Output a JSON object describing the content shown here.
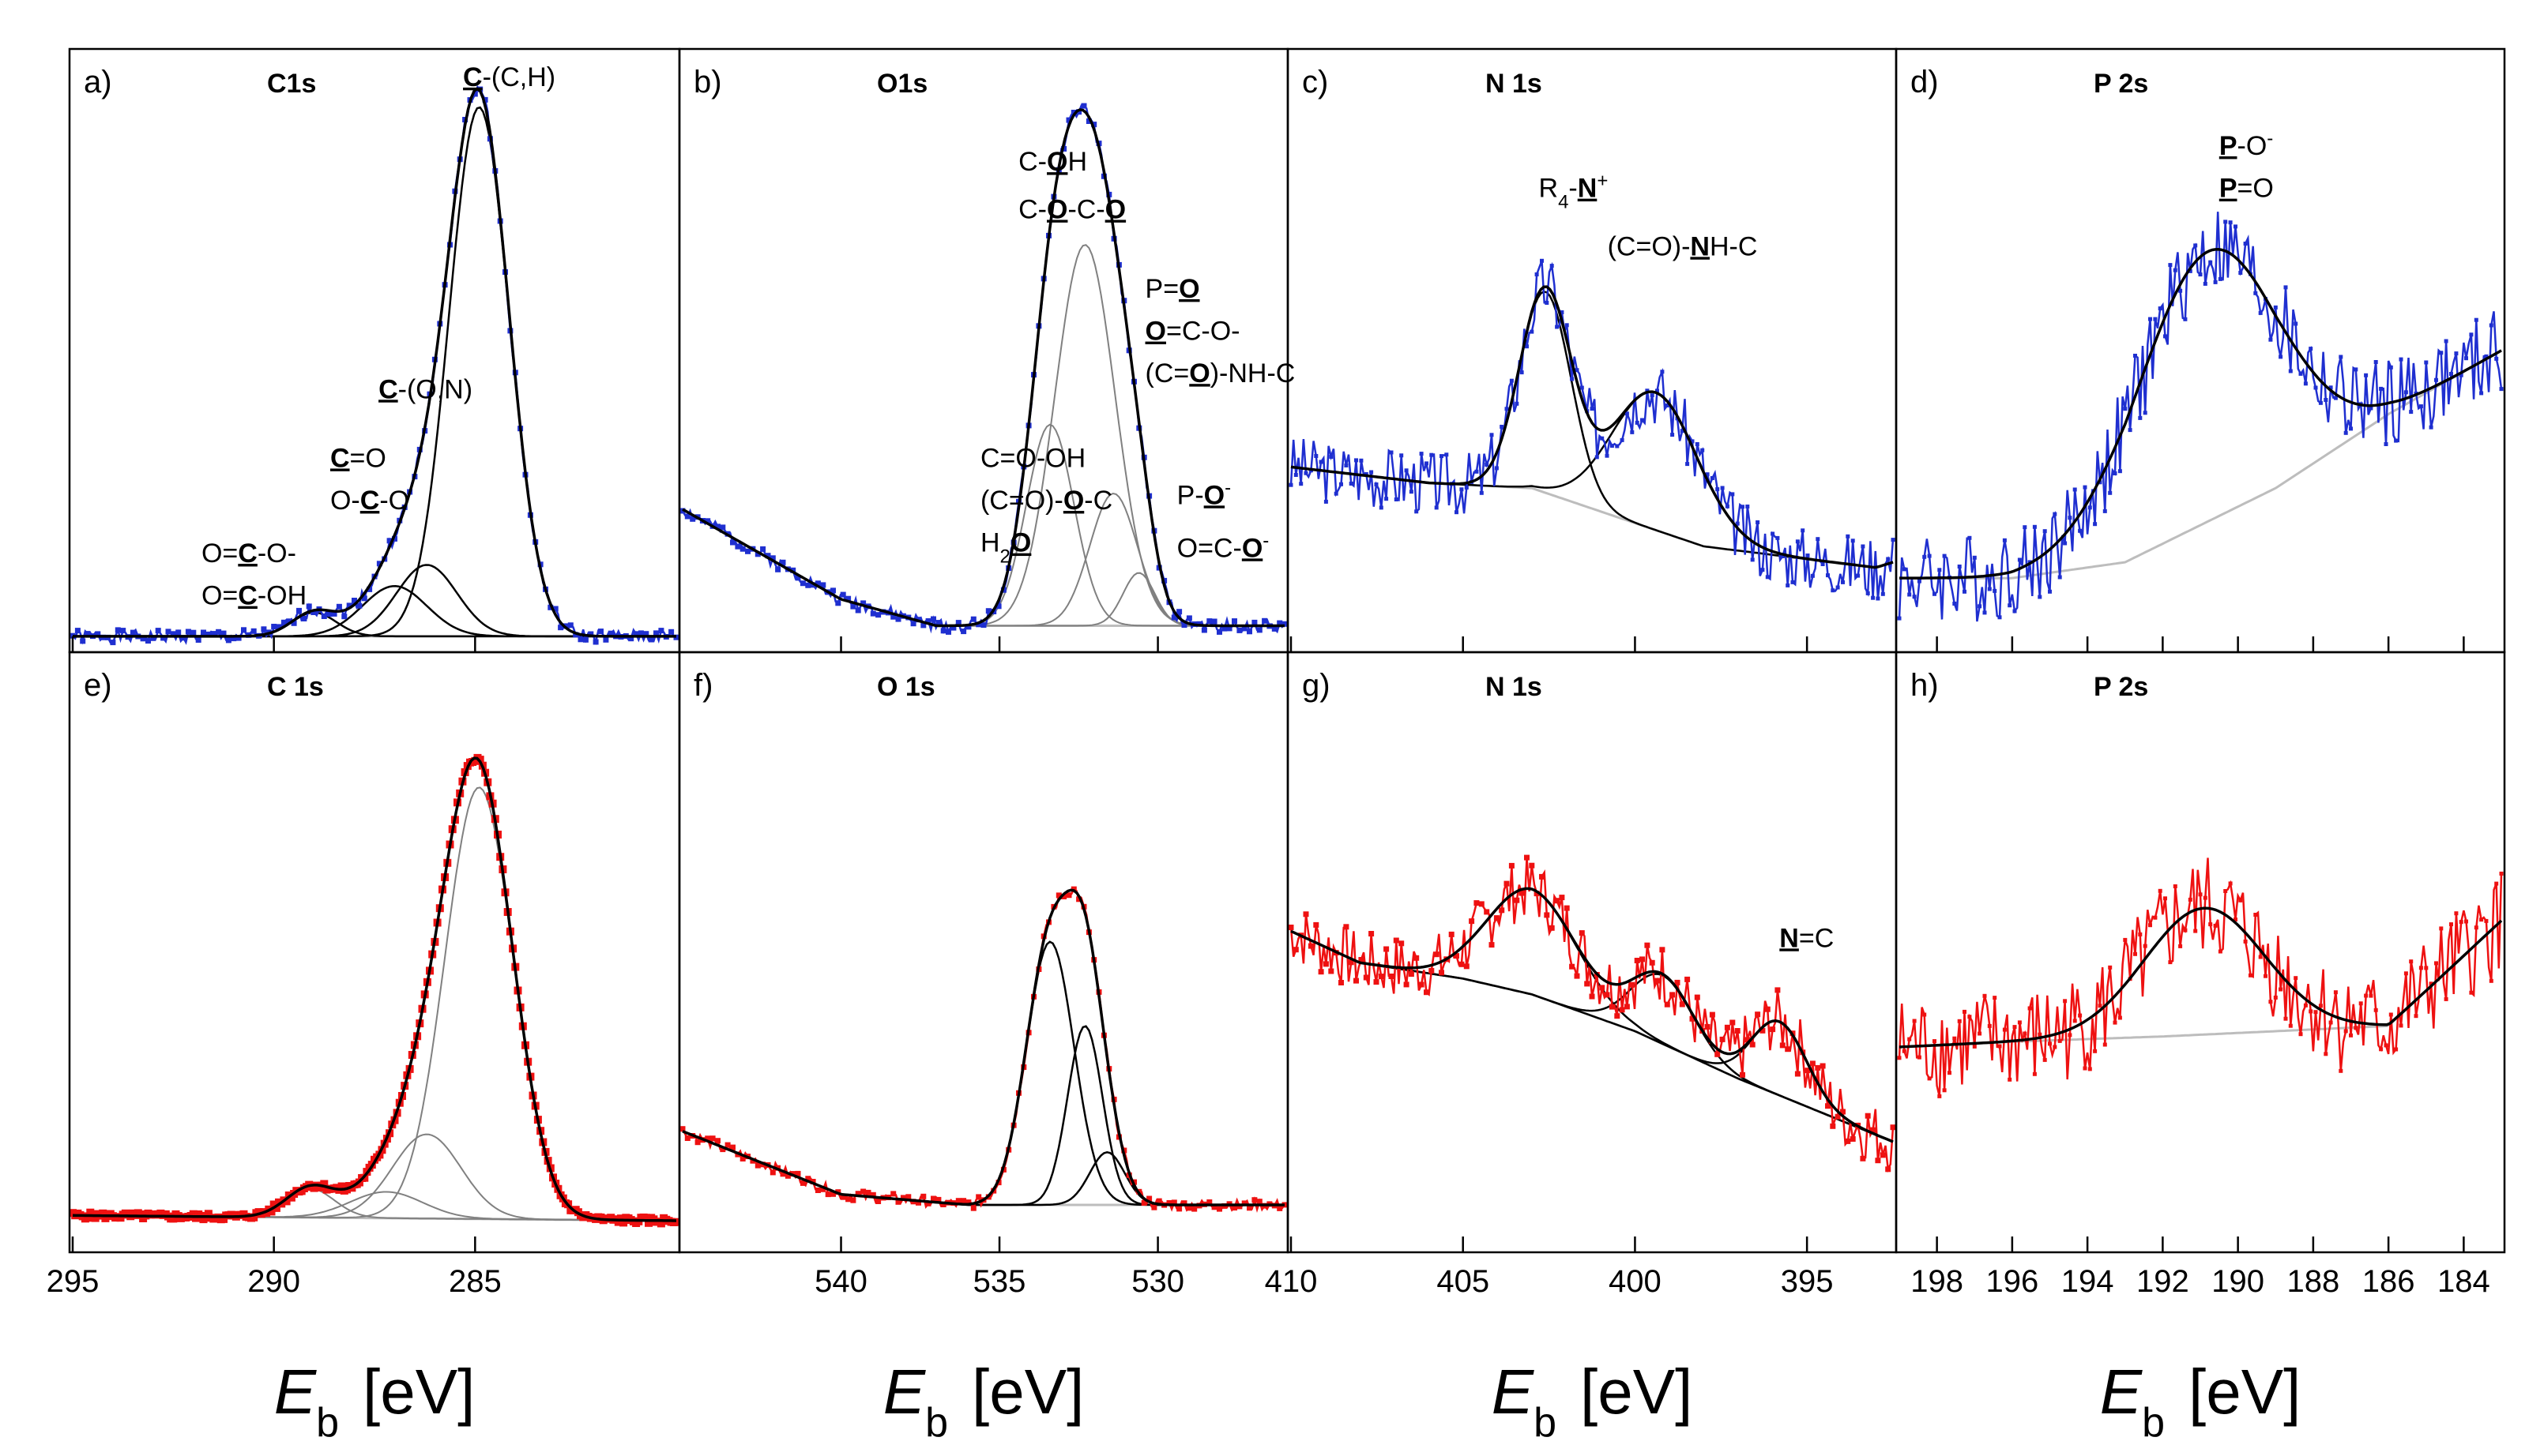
{
  "colors": {
    "upper": "#1f2fd0",
    "lower": "#ee1111",
    "component": "#000000",
    "component_light": "#808080",
    "background": "#bdbdbd"
  },
  "chart_data": [
    {
      "panel": "a)",
      "title": "C1s",
      "type": "line",
      "row": "upper",
      "column": 1,
      "xlim": [
        295,
        280
      ],
      "xlabel_symbol": "E",
      "xlabel_sub": "b",
      "xlabel_unit": "[eV]",
      "ticks": [
        {
          "v": 295,
          "label": "295"
        },
        {
          "v": 290,
          "label": "290"
        },
        {
          "v": 285,
          "label": "285"
        }
      ],
      "background": [
        [
          295,
          0.02
        ],
        [
          280,
          0.02
        ]
      ],
      "peaks": [
        {
          "center": 284.9,
          "height": 1.0,
          "width": 0.75
        },
        {
          "center": 286.2,
          "height": 0.135,
          "width": 0.75
        },
        {
          "center": 287.0,
          "height": 0.095,
          "width": 0.8
        },
        {
          "center": 289.0,
          "height": 0.045,
          "width": 0.55
        }
      ],
      "noise": 0.012,
      "seed": 1,
      "marker": "square",
      "annotations": [
        {
          "parts": [
            {
              "t": "C",
              "u": true
            },
            {
              "t": "-(C,H)"
            }
          ],
          "x": 285.3,
          "y": 1.06
        },
        {
          "parts": [
            {
              "t": "C",
              "u": true
            },
            {
              "t": "-(O,N)"
            }
          ],
          "x": 287.4,
          "y": 0.47
        },
        {
          "parts": [
            {
              "t": "C",
              "u": true
            },
            {
              "t": "=O"
            }
          ],
          "x": 288.6,
          "y": 0.34
        },
        {
          "parts": [
            {
              "t": "O-"
            },
            {
              "t": "C",
              "u": true
            },
            {
              "t": "-O"
            }
          ],
          "x": 288.6,
          "y": 0.26
        },
        {
          "parts": [
            {
              "t": "O="
            },
            {
              "t": "C",
              "u": true
            },
            {
              "t": "-O-"
            }
          ],
          "x": 291.8,
          "y": 0.16
        },
        {
          "parts": [
            {
              "t": "O="
            },
            {
              "t": "C",
              "u": true
            },
            {
              "t": "-OH"
            }
          ],
          "x": 291.8,
          "y": 0.08
        }
      ]
    },
    {
      "panel": "b)",
      "title": "O1s",
      "type": "line",
      "row": "upper",
      "column": 2,
      "xlim": [
        545,
        526
      ],
      "xlabel_symbol": "E",
      "xlabel_sub": "b",
      "xlabel_unit": "[eV]",
      "ticks": [
        {
          "v": 540,
          "label": "540"
        },
        {
          "v": 535,
          "label": "535"
        },
        {
          "v": 530,
          "label": "530"
        }
      ],
      "background": [
        [
          545,
          0.26
        ],
        [
          540,
          0.09
        ],
        [
          537,
          0.04
        ],
        [
          526,
          0.04
        ]
      ],
      "peaks": [
        {
          "center": 532.3,
          "height": 0.72,
          "width": 0.95
        },
        {
          "center": 533.4,
          "height": 0.38,
          "width": 0.75
        },
        {
          "center": 531.4,
          "height": 0.25,
          "width": 0.75
        },
        {
          "center": 530.6,
          "height": 0.1,
          "width": 0.5
        }
      ],
      "noise": 0.012,
      "seed": 2,
      "marker": "square",
      "annotations": [
        {
          "parts": [
            {
              "t": "C-"
            },
            {
              "t": "O",
              "u": true
            },
            {
              "t": "H"
            }
          ],
          "x": 534.4,
          "y": 0.9
        },
        {
          "parts": [
            {
              "t": "C-"
            },
            {
              "t": "O",
              "u": true
            },
            {
              "t": "-C-"
            },
            {
              "t": "O",
              "u": true
            }
          ],
          "x": 534.4,
          "y": 0.81
        },
        {
          "parts": [
            {
              "t": "P="
            },
            {
              "t": "O",
              "u": true
            }
          ],
          "x": 530.4,
          "y": 0.66
        },
        {
          "parts": [
            {
              "t": "O",
              "u": true
            },
            {
              "t": "=C-O-"
            }
          ],
          "x": 530.4,
          "y": 0.58
        },
        {
          "parts": [
            {
              "t": "(C="
            },
            {
              "t": "O",
              "u": true
            },
            {
              "t": ")-NH-C"
            }
          ],
          "x": 530.4,
          "y": 0.5
        },
        {
          "parts": [
            {
              "t": "C=O-OH"
            }
          ],
          "x": 535.6,
          "y": 0.34
        },
        {
          "parts": [
            {
              "t": "(C=O)-"
            },
            {
              "t": "O",
              "u": true
            },
            {
              "t": "-C"
            }
          ],
          "x": 535.6,
          "y": 0.26
        },
        {
          "parts": [
            {
              "t": "H"
            },
            {
              "t": "2",
              "sub": true
            },
            {
              "t": "O",
              "u": true
            }
          ],
          "x": 535.6,
          "y": 0.18
        },
        {
          "parts": [
            {
              "t": "P-"
            },
            {
              "t": "O",
              "u": true
            },
            {
              "t": "-",
              "sup": true
            }
          ],
          "x": 529.4,
          "y": 0.27
        },
        {
          "parts": [
            {
              "t": "O=C-"
            },
            {
              "t": "O",
              "u": true
            },
            {
              "t": "-",
              "sup": true
            }
          ],
          "x": 529.4,
          "y": 0.17
        }
      ]
    },
    {
      "panel": "c)",
      "title": "N 1s",
      "type": "line",
      "row": "upper",
      "column": 3,
      "xlim": [
        410,
        392.5
      ],
      "ticks": [
        {
          "v": 410,
          "label": "410"
        },
        {
          "v": 405,
          "label": "405"
        },
        {
          "v": 400,
          "label": "400"
        },
        {
          "v": 395,
          "label": "395"
        }
      ],
      "background": [
        [
          410,
          0.34
        ],
        [
          406,
          0.31
        ],
        [
          403,
          0.3
        ],
        [
          398,
          0.19
        ],
        [
          393,
          0.15
        ],
        [
          392.5,
          0.16
        ]
      ],
      "peaks": [
        {
          "center": 402.6,
          "height": 0.38,
          "width": 0.75
        },
        {
          "center": 399.4,
          "height": 0.26,
          "width": 1.25
        }
      ],
      "noise": 0.06,
      "seed": 3,
      "marker": "dot",
      "annotations": [
        {
          "parts": [
            {
              "t": "R"
            },
            {
              "t": "4",
              "sub": true
            },
            {
              "t": "-"
            },
            {
              "t": "N",
              "u": true
            },
            {
              "t": "+",
              "sup": true
            }
          ],
          "x": 402.8,
          "y": 0.85
        },
        {
          "parts": [
            {
              "t": "(C=O)-"
            },
            {
              "t": "N",
              "u": true
            },
            {
              "t": "H-C"
            }
          ],
          "x": 400.8,
          "y": 0.74
        }
      ]
    },
    {
      "panel": "d)",
      "title": "P 2s",
      "type": "line",
      "row": "upper",
      "column": 4,
      "xlim": [
        199,
        183
      ],
      "ticks": [
        {
          "v": 198,
          "label": "198"
        },
        {
          "v": 196,
          "label": "196"
        },
        {
          "v": 194,
          "label": "194"
        },
        {
          "v": 192,
          "label": "192"
        },
        {
          "v": 190,
          "label": "190"
        },
        {
          "v": 188,
          "label": "188"
        },
        {
          "v": 186,
          "label": "186"
        },
        {
          "v": 184,
          "label": "184"
        }
      ],
      "background": [
        [
          199,
          0.13
        ],
        [
          196,
          0.13
        ],
        [
          193,
          0.16
        ],
        [
          189,
          0.3
        ],
        [
          186,
          0.44
        ],
        [
          183,
          0.56
        ]
      ],
      "peaks": [
        {
          "center": 190.8,
          "height": 0.51,
          "width": 1.9
        }
      ],
      "noise": 0.085,
      "seed": 4,
      "marker": "dot",
      "annotations": [
        {
          "parts": [
            {
              "t": "P",
              "u": true
            },
            {
              "t": "-O"
            },
            {
              "t": "-",
              "sup": true
            }
          ],
          "x": 190.5,
          "y": 0.93
        },
        {
          "parts": [
            {
              "t": "P",
              "u": true
            },
            {
              "t": "=O"
            }
          ],
          "x": 190.5,
          "y": 0.85
        }
      ]
    },
    {
      "panel": "e)",
      "title": "C 1s",
      "type": "line",
      "row": "lower",
      "column": 1,
      "xlim": [
        295,
        280
      ],
      "ticks": [
        {
          "v": 295,
          "label": "295"
        },
        {
          "v": 290,
          "label": "290"
        },
        {
          "v": 285,
          "label": "285"
        }
      ],
      "background": [
        [
          295,
          0.06
        ],
        [
          280,
          0.05
        ]
      ],
      "peaks": [
        {
          "center": 284.9,
          "height": 0.82,
          "width": 0.85
        },
        {
          "center": 286.2,
          "height": 0.16,
          "width": 0.85
        },
        {
          "center": 287.2,
          "height": 0.05,
          "width": 0.9
        },
        {
          "center": 289.1,
          "height": 0.055,
          "width": 0.6
        }
      ],
      "noise": 0.006,
      "seed": 5,
      "marker": "square_big",
      "annotations": []
    },
    {
      "panel": "f)",
      "title": "O 1s",
      "type": "line",
      "row": "lower",
      "column": 2,
      "xlim": [
        545,
        526
      ],
      "ticks": [
        {
          "v": 540,
          "label": "540"
        },
        {
          "v": 535,
          "label": "535"
        },
        {
          "v": 530,
          "label": "530"
        }
      ],
      "background": [
        [
          545,
          0.22
        ],
        [
          540,
          0.1
        ],
        [
          536,
          0.08
        ],
        [
          526,
          0.08
        ]
      ],
      "peaks": [
        {
          "center": 533.4,
          "height": 0.5,
          "width": 0.75
        },
        {
          "center": 532.3,
          "height": 0.34,
          "width": 0.55
        },
        {
          "center": 531.6,
          "height": 0.1,
          "width": 0.55
        }
      ],
      "noise": 0.01,
      "seed": 6,
      "marker": "square",
      "annotations": []
    },
    {
      "panel": "g)",
      "title": "N 1s",
      "type": "line",
      "row": "lower",
      "column": 3,
      "xlim": [
        410,
        392.5
      ],
      "ticks": [
        {
          "v": 410,
          "label": "410"
        },
        {
          "v": 405,
          "label": "405"
        },
        {
          "v": 400,
          "label": "400"
        },
        {
          "v": 395,
          "label": "395"
        }
      ],
      "background": [
        [
          410,
          0.6
        ],
        [
          408,
          0.54
        ],
        [
          405,
          0.51
        ],
        [
          403,
          0.48
        ],
        [
          400,
          0.41
        ],
        [
          397,
          0.32
        ],
        [
          394,
          0.24
        ],
        [
          392.5,
          0.2
        ]
      ],
      "peaks": [
        {
          "center": 403.0,
          "height": 0.2,
          "width": 1.3
        },
        {
          "center": 399.2,
          "height": 0.13,
          "width": 0.9
        },
        {
          "center": 395.8,
          "height": 0.14,
          "width": 0.8
        }
      ],
      "noise": 0.06,
      "seed": 7,
      "marker": "square",
      "annotations": [
        {
          "parts": [
            {
              "t": "N",
              "u": true
            },
            {
              "t": "=C"
            }
          ],
          "x": 395.8,
          "y": 0.57
        }
      ]
    },
    {
      "panel": "h)",
      "title": "P 2s",
      "type": "line",
      "row": "lower",
      "column": 4,
      "xlim": [
        199,
        183
      ],
      "ticks": [
        {
          "v": 198,
          "label": "198"
        },
        {
          "v": 196,
          "label": "196"
        },
        {
          "v": 194,
          "label": "194"
        },
        {
          "v": 192,
          "label": "192"
        },
        {
          "v": 190,
          "label": "190"
        },
        {
          "v": 188,
          "label": "188"
        },
        {
          "v": 186,
          "label": "186"
        },
        {
          "v": 184,
          "label": "184"
        }
      ],
      "background": [
        [
          199,
          0.38
        ],
        [
          196,
          0.39
        ],
        [
          192,
          0.4
        ],
        [
          186,
          0.42
        ],
        [
          183,
          0.62
        ]
      ],
      "peaks": [
        {
          "center": 190.9,
          "height": 0.24,
          "width": 1.6
        }
      ],
      "noise": 0.1,
      "seed": 8,
      "marker": "dot",
      "annotations": []
    }
  ],
  "axis_labels": [
    {
      "symbol": "E",
      "sub": "b",
      "unit": "[eV]"
    },
    {
      "symbol": "E",
      "sub": "b",
      "unit": "[eV]"
    },
    {
      "symbol": "E",
      "sub": "b",
      "unit": "[eV]"
    },
    {
      "symbol": "E",
      "sub": "b",
      "unit": "[eV]"
    }
  ]
}
